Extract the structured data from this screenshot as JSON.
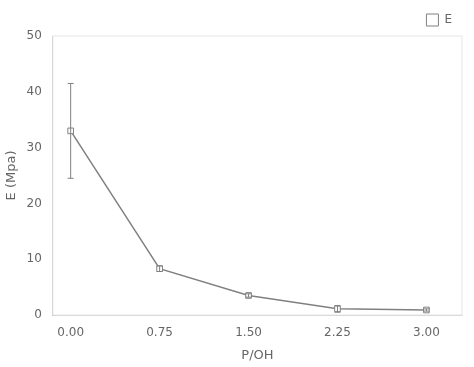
{
  "chart_data": {
    "type": "line",
    "xlabel": "P/OH",
    "ylabel": "E (Mpa)",
    "x": [
      0.0,
      0.75,
      1.5,
      2.25,
      3.0
    ],
    "series": [
      {
        "name": "E",
        "color": "#808080",
        "marker": "square",
        "values": [
          33.0,
          8.3,
          3.5,
          1.1,
          0.9
        ],
        "yerr": [
          8.5,
          0.5,
          0.3,
          0.6,
          0.2
        ]
      }
    ],
    "xlim": [
      -0.15,
      3.3
    ],
    "ylim": [
      0,
      50
    ],
    "xticks": [
      {
        "value": 0.0,
        "label": "0.00"
      },
      {
        "value": 0.75,
        "label": "0.75"
      },
      {
        "value": 1.5,
        "label": "1.50"
      },
      {
        "value": 2.25,
        "label": "2.25"
      },
      {
        "value": 3.0,
        "label": "3.00"
      }
    ],
    "yticks": [
      0,
      10,
      20,
      30,
      40,
      50
    ],
    "grid": false,
    "legend": "upper right"
  }
}
